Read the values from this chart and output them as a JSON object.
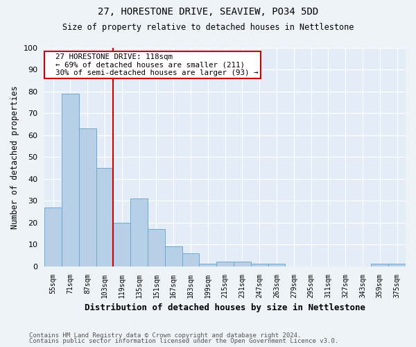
{
  "title1": "27, HORESTONE DRIVE, SEAVIEW, PO34 5DD",
  "title2": "Size of property relative to detached houses in Nettlestone",
  "xlabel": "Distribution of detached houses by size in Nettlestone",
  "ylabel": "Number of detached properties",
  "footnote1": "Contains HM Land Registry data © Crown copyright and database right 2024.",
  "footnote2": "Contains public sector information licensed under the Open Government Licence v3.0.",
  "bins": [
    55,
    71,
    87,
    103,
    119,
    135,
    151,
    167,
    183,
    199,
    215,
    231,
    247,
    263,
    279,
    295,
    311,
    327,
    343,
    359,
    375
  ],
  "counts": [
    27,
    79,
    63,
    45,
    20,
    31,
    17,
    9,
    6,
    1,
    2,
    2,
    1,
    1,
    0,
    0,
    0,
    0,
    0,
    1,
    1
  ],
  "bar_color": "#b8cfe8",
  "bar_edge_color": "#6aaad4",
  "vline_x": 119,
  "vline_color": "#cc0000",
  "annotation_line1": "27 HORESTONE DRIVE: 118sqm",
  "annotation_line2": "← 69% of detached houses are smaller (211)",
  "annotation_line3": "30% of semi-detached houses are larger (93) →",
  "annotation_box_color": "#cc0000",
  "ylim": [
    0,
    100
  ],
  "bin_width": 16,
  "background_color": "#eef2f9",
  "plot_bg_color": "#e4ecf7"
}
